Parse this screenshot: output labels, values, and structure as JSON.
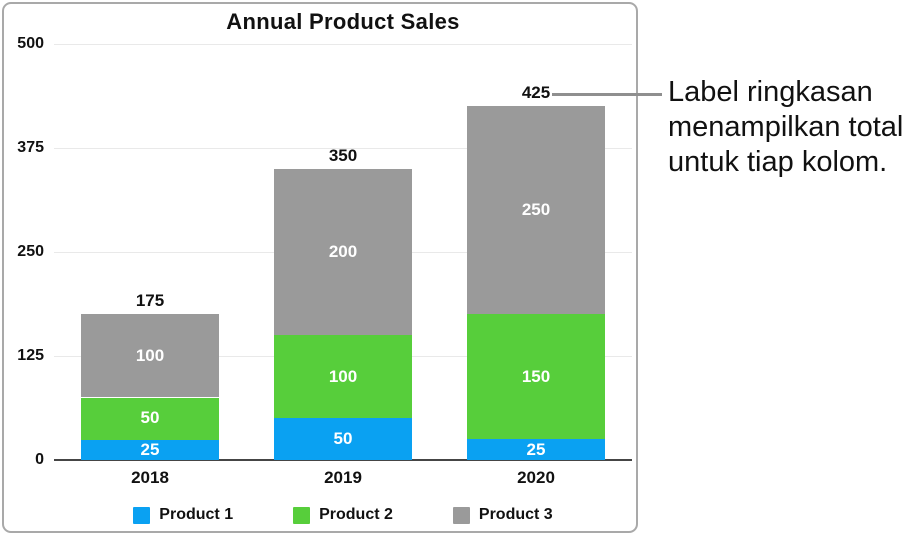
{
  "chart_data": {
    "type": "bar",
    "stacked": true,
    "title": "Annual Product Sales",
    "categories": [
      "2018",
      "2019",
      "2020"
    ],
    "series": [
      {
        "name": "Product 1",
        "color": "#0aa1f2",
        "values": [
          25,
          50,
          25
        ]
      },
      {
        "name": "Product 2",
        "color": "#57ce3b",
        "values": [
          50,
          100,
          150
        ]
      },
      {
        "name": "Product 3",
        "color": "#9a9a9a",
        "values": [
          100,
          200,
          250
        ]
      }
    ],
    "totals": [
      175,
      350,
      425
    ],
    "y_ticks": [
      0,
      125,
      250,
      375,
      500
    ],
    "ylim": [
      0,
      500
    ],
    "grid": true,
    "legend_position": "bottom",
    "legend": [
      "Product 1",
      "Product 2",
      "Product 3"
    ]
  },
  "callout": {
    "lines": [
      "Label ringkasan",
      "menampilkan total",
      "untuk tiap kolom."
    ],
    "connects_to_label": "425"
  },
  "colors": {
    "frame_border": "#a9a9a9",
    "gridline": "#e9e9e9",
    "axis_line": "#454545",
    "connector_line": "#8f8f8f",
    "text": "#111111",
    "segment_label_text": "#ffffff",
    "series_blue": "#0aa1f2",
    "series_green": "#57ce3b",
    "series_gray": "#9a9a9a"
  }
}
